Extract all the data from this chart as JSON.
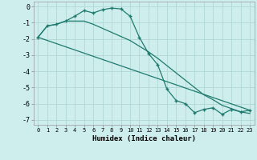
{
  "title": "",
  "xlabel": "Humidex (Indice chaleur)",
  "background_color": "#ceeeed",
  "grid_color": "#b0d8d4",
  "line_color": "#1e7a6e",
  "xlim": [
    -0.5,
    23.5
  ],
  "ylim": [
    -7.3,
    0.3
  ],
  "yticks": [
    0,
    -1,
    -2,
    -3,
    -4,
    -5,
    -6,
    -7
  ],
  "xticks": [
    0,
    1,
    2,
    3,
    4,
    5,
    6,
    7,
    8,
    9,
    10,
    11,
    12,
    13,
    14,
    15,
    16,
    17,
    18,
    19,
    20,
    21,
    22,
    23
  ],
  "line1_x": [
    0,
    1,
    2,
    3,
    4,
    5,
    6,
    7,
    8,
    9,
    10,
    11,
    12,
    13,
    14,
    15,
    16,
    17,
    18,
    19,
    20,
    21,
    22,
    23
  ],
  "line1_y": [
    -1.9,
    -1.2,
    -1.1,
    -0.9,
    -0.6,
    -0.25,
    -0.4,
    -0.2,
    -0.1,
    -0.15,
    -0.6,
    -1.9,
    -2.9,
    -3.6,
    -5.1,
    -5.8,
    -6.0,
    -6.55,
    -6.35,
    -6.25,
    -6.65,
    -6.35,
    -6.5,
    -6.4
  ],
  "line2_x": [
    0,
    1,
    2,
    3,
    4,
    5,
    6,
    7,
    8,
    9,
    10,
    11,
    12,
    13,
    14,
    15,
    16,
    17,
    18,
    19,
    20,
    21,
    22,
    23
  ],
  "line2_y": [
    -1.9,
    -1.2,
    -1.1,
    -0.9,
    -0.9,
    -0.9,
    -1.1,
    -1.35,
    -1.6,
    -1.85,
    -2.1,
    -2.45,
    -2.8,
    -3.2,
    -3.65,
    -4.1,
    -4.55,
    -5.0,
    -5.45,
    -5.75,
    -6.1,
    -6.3,
    -6.5,
    -6.6
  ],
  "line3_x": [
    0,
    23
  ],
  "line3_y": [
    -1.9,
    -6.4
  ]
}
